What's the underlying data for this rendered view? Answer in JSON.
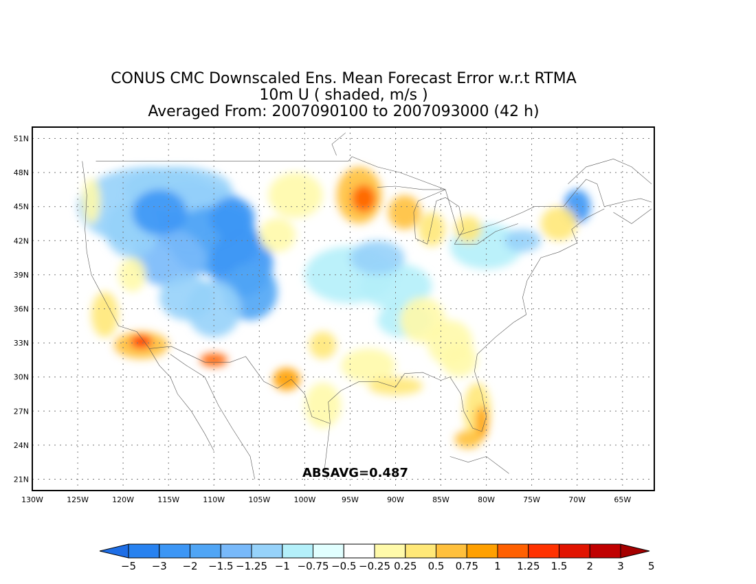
{
  "title": {
    "line1": "CONUS CMC Downscaled Ens. Mean Forecast Error w.r.t RTMA",
    "line2": "10m U ( shaded, m/s )",
    "line3": "Averaged From: 2007090100 to 2007093000 (42 h)"
  },
  "map": {
    "lat_labels": [
      "51N",
      "48N",
      "45N",
      "42N",
      "39N",
      "36N",
      "33N",
      "30N",
      "27N",
      "24N",
      "21N"
    ],
    "lat_values": [
      51,
      48,
      45,
      42,
      39,
      36,
      33,
      30,
      27,
      24,
      21
    ],
    "lon_labels": [
      "130W",
      "125W",
      "120W",
      "115W",
      "110W",
      "105W",
      "100W",
      "95W",
      "90W",
      "85W",
      "80W",
      "75W",
      "70W",
      "65W"
    ],
    "lon_values": [
      -130,
      -125,
      -120,
      -115,
      -110,
      -105,
      -100,
      -95,
      -90,
      -85,
      -80,
      -75,
      -70,
      -65
    ],
    "lon_range": [
      -130,
      -61.5
    ],
    "lat_range": [
      20,
      52
    ],
    "grid": true,
    "absavg_label": "ABSAVG=0.487"
  },
  "colorbar": {
    "colors": [
      "#1e6ee6",
      "#2882f0",
      "#3c96f5",
      "#50a5f5",
      "#78b9fa",
      "#96d2fa",
      "#b4f0fa",
      "#e1ffff",
      "#ffffff",
      "#fffaaa",
      "#ffe878",
      "#ffc03c",
      "#ffa000",
      "#ff6000",
      "#ff3200",
      "#e11400",
      "#c00000",
      "#a50000"
    ],
    "labels": [
      "−5",
      "−3",
      "−2",
      "−1.5",
      "−1.25",
      "−1",
      "−0.75",
      "−0.5",
      "−0.25",
      "0.25",
      "0.5",
      "0.75",
      "1",
      "1.25",
      "1.5",
      "2",
      "3",
      "5"
    ]
  },
  "colors": {
    "negative": "#3c96f5",
    "positive": "#ffa000"
  }
}
